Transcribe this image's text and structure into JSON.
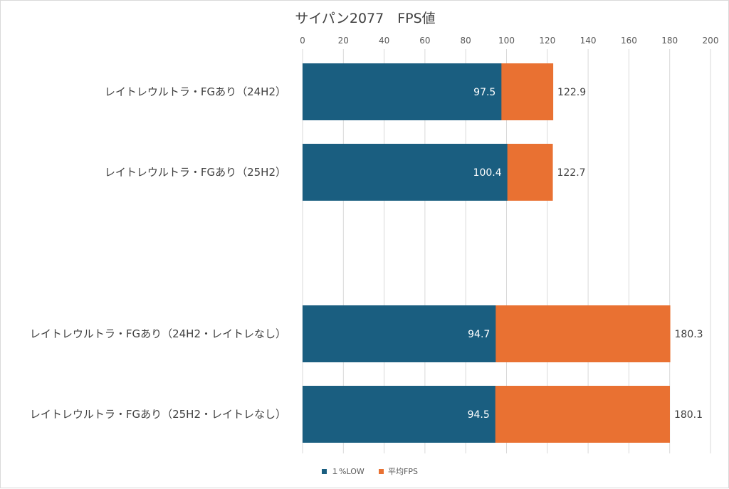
{
  "chart_data": {
    "type": "bar",
    "orientation": "horizontal",
    "stacking": "overlay",
    "title": "サイパン2077　FPS値",
    "xlim": [
      0,
      200
    ],
    "x_ticks": [
      0,
      20,
      40,
      60,
      80,
      100,
      120,
      140,
      160,
      180,
      200
    ],
    "x_axis_position": "top",
    "grid": true,
    "legend_position": "bottom",
    "categories": [
      "レイトレウルトラ・FGあり（24H2）",
      "レイトレウルトラ・FGあり（25H2）",
      "",
      "レイトレウルトラ・FGあり（24H2・レイトレなし）",
      "レイトレウルトラ・FGあり（25H2・レイトレなし）"
    ],
    "series": [
      {
        "name": "１%LOW",
        "color": "#1a5e80",
        "values": [
          97.5,
          100.4,
          null,
          94.7,
          94.5
        ]
      },
      {
        "name": "平均FPS",
        "color": "#e97132",
        "values": [
          122.9,
          122.7,
          null,
          180.3,
          180.1
        ]
      }
    ]
  }
}
